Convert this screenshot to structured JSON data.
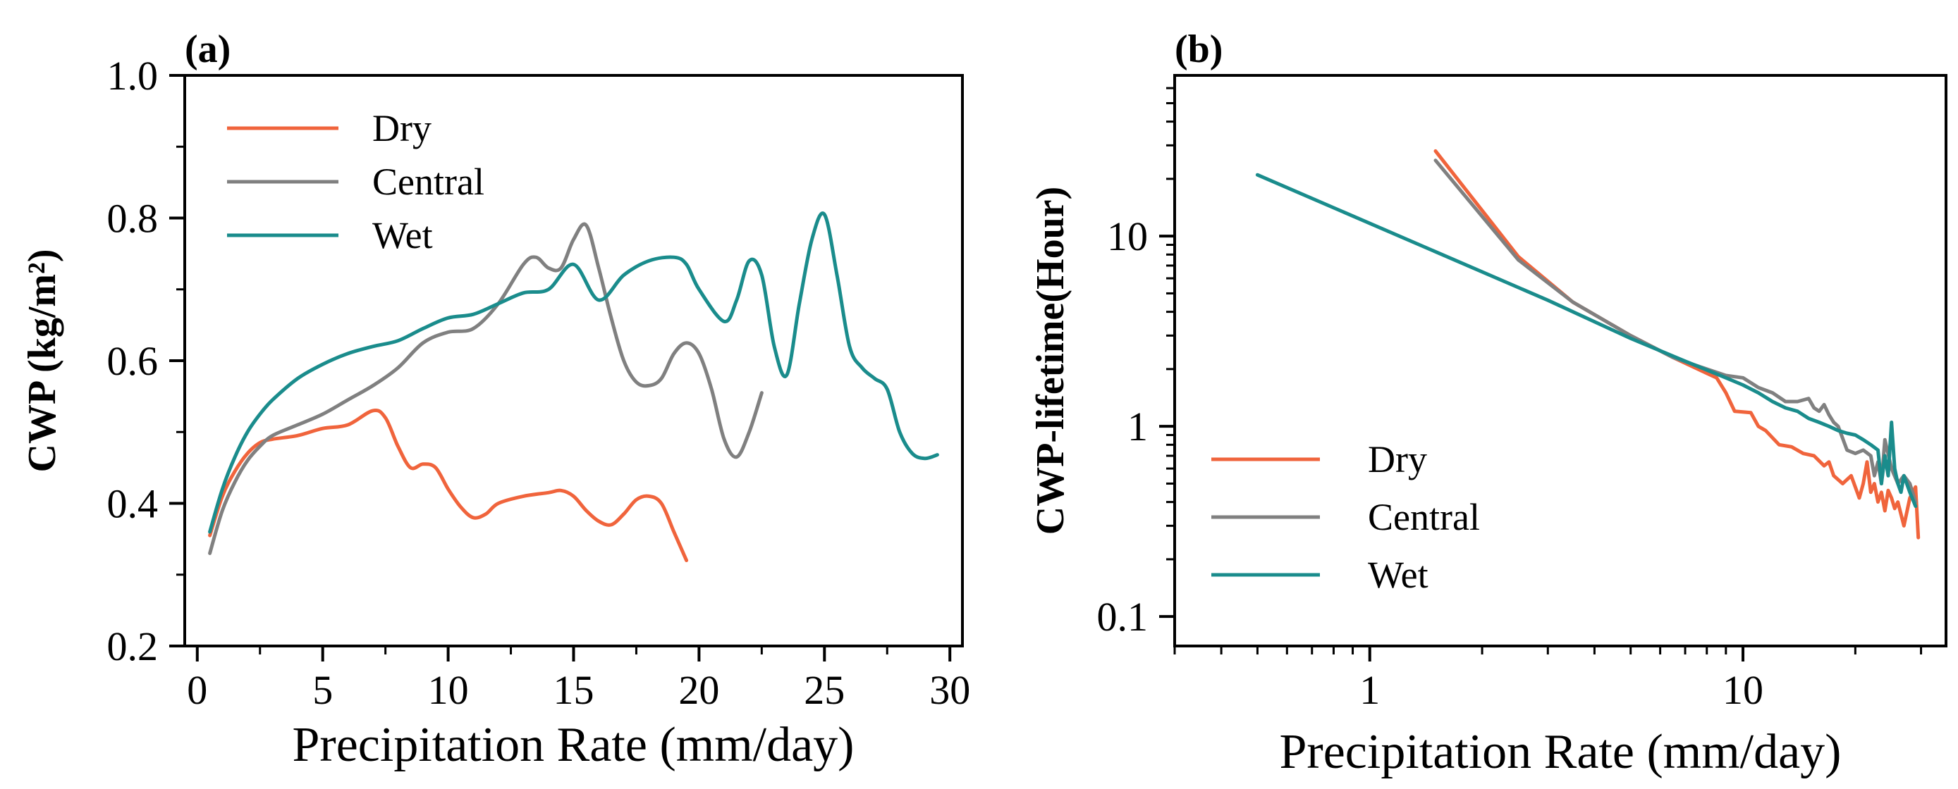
{
  "chart_data": [
    {
      "panel_label": "(a)",
      "type": "line",
      "xlabel": "Precipitation Rate (mm/day)",
      "ylabel": "CWP (kg/m²)",
      "xlim": [
        -0.5,
        30.5
      ],
      "ylim": [
        0.2,
        1.0
      ],
      "xscale": "linear",
      "yscale": "linear",
      "xticks": [
        0,
        5,
        10,
        15,
        20,
        25,
        30
      ],
      "xtick_labels": [
        "0",
        "5",
        "10",
        "15",
        "20",
        "25",
        "30"
      ],
      "yticks": [
        0.2,
        0.4,
        0.6,
        0.8,
        1.0
      ],
      "ytick_labels": [
        "0.2",
        "0.4",
        "0.6",
        "0.8",
        "1.0"
      ],
      "legend_position": "top-left",
      "series": [
        {
          "name": "Dry",
          "color": "#f0643c",
          "x": [
            0.5,
            1.0,
            1.5,
            2.0,
            2.5,
            3.0,
            4.0,
            5.0,
            6.0,
            7.0,
            7.5,
            8.0,
            8.5,
            9.0,
            9.5,
            10.0,
            10.5,
            11.0,
            11.5,
            12.0,
            13.0,
            14.0,
            14.5,
            15.0,
            15.5,
            16.0,
            16.5,
            17.0,
            17.5,
            18.0,
            18.5,
            19.0,
            19.5
          ],
          "y": [
            0.355,
            0.41,
            0.445,
            0.47,
            0.485,
            0.49,
            0.495,
            0.505,
            0.51,
            0.53,
            0.52,
            0.48,
            0.45,
            0.455,
            0.45,
            0.42,
            0.395,
            0.38,
            0.385,
            0.4,
            0.41,
            0.415,
            0.418,
            0.41,
            0.39,
            0.375,
            0.37,
            0.385,
            0.405,
            0.41,
            0.4,
            0.36,
            0.32
          ]
        },
        {
          "name": "Central",
          "color": "#808080",
          "x": [
            0.5,
            1.0,
            1.5,
            2.0,
            2.5,
            3.0,
            4.0,
            5.0,
            6.0,
            7.0,
            8.0,
            9.0,
            10.0,
            11.0,
            12.0,
            13.0,
            13.5,
            14.0,
            14.5,
            15.0,
            15.5,
            16.0,
            16.5,
            17.0,
            17.5,
            18.0,
            18.5,
            19.0,
            19.5,
            20.0,
            20.5,
            21.0,
            21.5,
            22.0,
            22.5
          ],
          "y": [
            0.33,
            0.39,
            0.43,
            0.46,
            0.48,
            0.495,
            0.51,
            0.525,
            0.545,
            0.565,
            0.59,
            0.625,
            0.64,
            0.645,
            0.68,
            0.735,
            0.745,
            0.73,
            0.73,
            0.77,
            0.79,
            0.73,
            0.66,
            0.6,
            0.57,
            0.565,
            0.575,
            0.61,
            0.625,
            0.61,
            0.56,
            0.49,
            0.465,
            0.5,
            0.555
          ]
        },
        {
          "name": "Wet",
          "color": "#1a8c8c",
          "x": [
            0.5,
            1.0,
            1.5,
            2.0,
            2.5,
            3.0,
            4.0,
            5.0,
            6.0,
            7.0,
            8.0,
            9.0,
            10.0,
            11.0,
            12.0,
            13.0,
            14.0,
            15.0,
            16.0,
            17.0,
            18.0,
            19.0,
            19.5,
            20.0,
            21.0,
            21.5,
            22.0,
            22.5,
            23.0,
            23.5,
            24.0,
            24.5,
            25.0,
            25.5,
            26.0,
            26.5,
            27.0,
            27.5,
            28.0,
            28.5,
            29.0,
            29.5
          ],
          "y": [
            0.36,
            0.42,
            0.465,
            0.5,
            0.525,
            0.545,
            0.575,
            0.595,
            0.61,
            0.62,
            0.628,
            0.645,
            0.66,
            0.665,
            0.68,
            0.695,
            0.7,
            0.735,
            0.685,
            0.72,
            0.74,
            0.745,
            0.735,
            0.7,
            0.655,
            0.685,
            0.74,
            0.72,
            0.62,
            0.58,
            0.68,
            0.77,
            0.805,
            0.72,
            0.62,
            0.59,
            0.575,
            0.56,
            0.5,
            0.47,
            0.463,
            0.468
          ]
        }
      ]
    },
    {
      "panel_label": "(b)",
      "type": "line",
      "xlabel": "Precipitation Rate (mm/day)",
      "ylabel": "CWP-lifetime(Hour)",
      "xlim": [
        0.3,
        35
      ],
      "ylim": [
        0.07,
        70
      ],
      "xscale": "log",
      "yscale": "log",
      "xticks": [
        1,
        10
      ],
      "xtick_labels": [
        "1",
        "10"
      ],
      "yticks": [
        0.1,
        1,
        10
      ],
      "ytick_labels": [
        "0.1",
        "1",
        "10"
      ],
      "legend_position": "bottom-left",
      "series": [
        {
          "name": "Dry",
          "color": "#f0643c",
          "x": [
            1.5,
            2.5,
            3.5,
            5.0,
            6.5,
            8.0,
            8.5,
            9.0,
            9.5,
            10.5,
            11.0,
            11.5,
            12.5,
            13.5,
            14.5,
            15.5,
            16.5,
            17.0,
            17.5,
            18.5,
            19.5,
            20.5,
            21.0,
            21.5,
            22.0,
            22.5,
            23.0,
            23.5,
            24.0,
            24.5,
            25.0,
            25.5,
            26.0,
            27.0,
            28.0,
            29.0,
            29.5
          ],
          "y": [
            28.0,
            7.8,
            4.5,
            3.0,
            2.3,
            1.9,
            1.8,
            1.5,
            1.2,
            1.18,
            1.0,
            0.95,
            0.8,
            0.78,
            0.72,
            0.7,
            0.62,
            0.65,
            0.55,
            0.5,
            0.55,
            0.42,
            0.5,
            0.65,
            0.45,
            0.5,
            0.4,
            0.45,
            0.36,
            0.46,
            0.42,
            0.37,
            0.4,
            0.3,
            0.42,
            0.48,
            0.26
          ]
        },
        {
          "name": "Central",
          "color": "#808080",
          "x": [
            1.5,
            2.5,
            3.5,
            5.0,
            6.5,
            8.0,
            9.0,
            10.0,
            11.0,
            12.0,
            13.0,
            14.0,
            15.0,
            15.5,
            16.0,
            16.5,
            17.0,
            17.5,
            18.0,
            19.0,
            20.0,
            21.0,
            22.0,
            22.5,
            23.0,
            23.5,
            24.0,
            25.0,
            26.0,
            27.0,
            28.0,
            29.0
          ],
          "y": [
            25.0,
            7.5,
            4.5,
            3.0,
            2.3,
            2.0,
            1.85,
            1.8,
            1.6,
            1.5,
            1.35,
            1.35,
            1.4,
            1.25,
            1.2,
            1.3,
            1.15,
            1.05,
            1.0,
            0.75,
            0.72,
            0.75,
            0.7,
            0.55,
            0.65,
            0.5,
            0.85,
            0.6,
            0.5,
            0.55,
            0.5,
            0.4
          ]
        },
        {
          "name": "Wet",
          "color": "#1a8c8c",
          "x": [
            0.5,
            3.0,
            5.0,
            7.0,
            9.0,
            10.0,
            11.0,
            12.0,
            13.0,
            14.0,
            15.0,
            16.0,
            17.0,
            18.0,
            19.0,
            20.0,
            21.0,
            22.0,
            23.0,
            23.5,
            24.0,
            24.5,
            25.0,
            25.5,
            26.0,
            26.5,
            27.0,
            28.0,
            29.0
          ],
          "y": [
            21.0,
            4.6,
            2.9,
            2.2,
            1.8,
            1.65,
            1.5,
            1.35,
            1.25,
            1.2,
            1.1,
            1.05,
            1.0,
            0.95,
            0.92,
            0.9,
            0.85,
            0.8,
            0.75,
            0.5,
            0.7,
            0.55,
            1.05,
            0.6,
            0.5,
            0.45,
            0.55,
            0.45,
            0.38
          ]
        }
      ]
    }
  ]
}
